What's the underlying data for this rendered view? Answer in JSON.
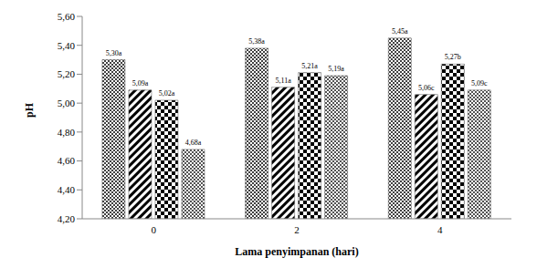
{
  "chart_data": {
    "type": "bar",
    "x_label": "Lama penyimpanan (hari)",
    "y_label": "pH",
    "categories": [
      "0",
      "2",
      "4"
    ],
    "series": [
      {
        "color": "#000000",
        "values": [
          5.3,
          5.38,
          5.45
        ],
        "value_labels": [
          "5,30a",
          "5,38a",
          "5,45a"
        ]
      },
      {
        "color": "#000000",
        "values": [
          5.09,
          5.11,
          5.06
        ],
        "value_labels": [
          "5,09a",
          "5,11a",
          "5,06c"
        ]
      },
      {
        "color": "#000000",
        "values": [
          5.02,
          5.21,
          5.27
        ],
        "value_labels": [
          "5,02a",
          "5,21a",
          "5,27b"
        ]
      },
      {
        "color": "#000000",
        "values": [
          4.68,
          5.19,
          5.09
        ],
        "value_labels": [
          "4,68a",
          "5,19a",
          "5,09c"
        ]
      }
    ],
    "ylim": [
      4.2,
      5.6
    ],
    "yticks": [
      {
        "value": 4.2,
        "label": "4,20"
      },
      {
        "value": 4.4,
        "label": "4,40"
      },
      {
        "value": 4.6,
        "label": "4,60"
      },
      {
        "value": 4.8,
        "label": "4,80"
      },
      {
        "value": 5.0,
        "label": "5,00"
      },
      {
        "value": 5.2,
        "label": "5,20"
      },
      {
        "value": 5.4,
        "label": "5,40"
      },
      {
        "value": 5.6,
        "label": "5,60"
      }
    ],
    "grid": false,
    "data_labels": true,
    "tick_labels": true
  }
}
